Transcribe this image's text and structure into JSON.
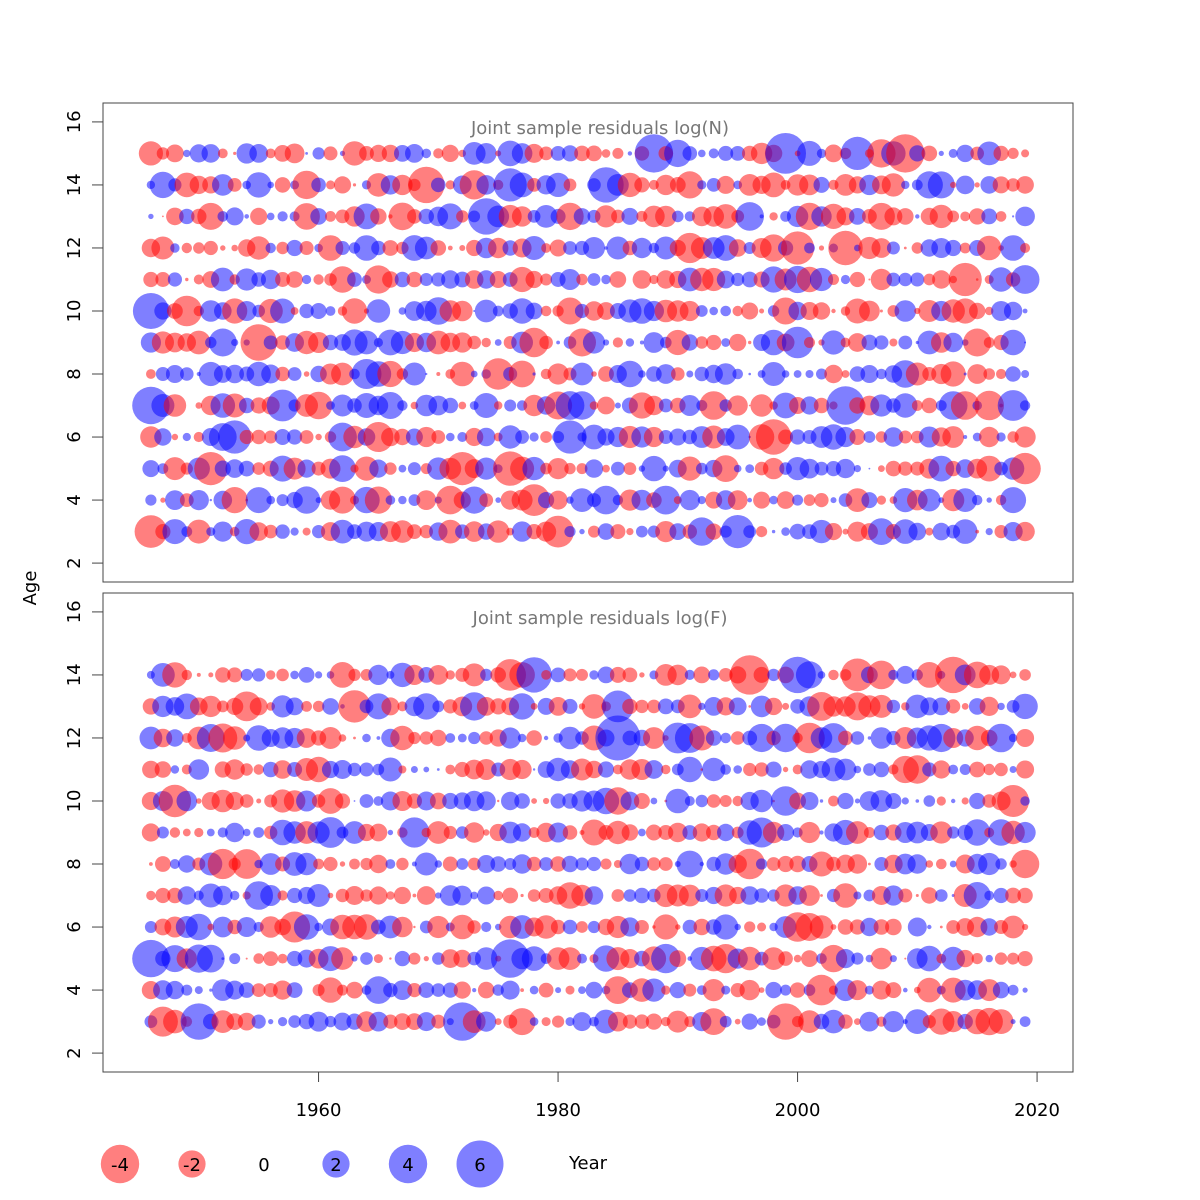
{
  "colors": {
    "positive": "#0000ff",
    "negative": "#ff0000",
    "alpha": 0.5,
    "title": "#777777"
  },
  "chart_data": [
    {
      "type": "bubble",
      "title": "Joint sample residuals log(N)",
      "xlabel": "Year",
      "ylabel": "Age",
      "xlim": [
        1942,
        2023
      ],
      "ylim": [
        1.4,
        16.6
      ],
      "x_ticks": [
        1960,
        1980,
        2000,
        2020
      ],
      "y_ticks": [
        2,
        4,
        6,
        8,
        10,
        12,
        14,
        16
      ],
      "years": [
        1946,
        2019
      ],
      "ages": [
        3,
        15
      ],
      "note": "Residual bubbles for every year 1946-2019 and age 3-15; blue = positive, red = negative; area proportional to |residual|."
    },
    {
      "type": "bubble",
      "title": "Joint sample residuals log(F)",
      "xlabel": "Year",
      "ylabel": "Age",
      "xlim": [
        1942,
        2023
      ],
      "ylim": [
        1.4,
        16.6
      ],
      "x_ticks": [
        1960,
        1980,
        2000,
        2020
      ],
      "y_ticks": [
        2,
        4,
        6,
        8,
        10,
        12,
        14,
        16
      ],
      "years": [
        1946,
        2019
      ],
      "ages": [
        3,
        14
      ],
      "note": "Residual bubbles for every year 1946-2019 and age 3-14; blue = positive, red = negative; area proportional to |residual|."
    }
  ],
  "legend": {
    "entries": [
      {
        "value": -4,
        "label": "-4"
      },
      {
        "value": -2,
        "label": "-2"
      },
      {
        "value": 0,
        "label": "0"
      },
      {
        "value": 2,
        "label": "2"
      },
      {
        "value": 4,
        "label": "4"
      },
      {
        "value": 6,
        "label": "6"
      }
    ],
    "xlabel": "Year"
  },
  "highlights": {
    "N": [
      {
        "year": 1946,
        "age": 10,
        "value": 3.5
      },
      {
        "year": 1946,
        "age": 7,
        "value": 3.8
      },
      {
        "year": 1955,
        "age": 9,
        "value": -3.6
      },
      {
        "year": 1969,
        "age": 14,
        "value": -3.6
      },
      {
        "year": 1974,
        "age": 13,
        "value": 3.6
      },
      {
        "year": 1976,
        "age": 5,
        "value": -3.2
      },
      {
        "year": 1984,
        "age": 14,
        "value": 3.4
      },
      {
        "year": 1988,
        "age": 15,
        "value": 4.0
      },
      {
        "year": 1999,
        "age": 15,
        "value": 4.5
      },
      {
        "year": 1998,
        "age": 6,
        "value": -3.4
      },
      {
        "year": 2004,
        "age": 7,
        "value": 4.0
      },
      {
        "year": 2004,
        "age": 12,
        "value": -3.2
      },
      {
        "year": 2009,
        "age": 15,
        "value": -4.0
      }
    ],
    "F": [
      {
        "year": 1946,
        "age": 5,
        "value": 3.8
      },
      {
        "year": 1950,
        "age": 3,
        "value": 3.6
      },
      {
        "year": 1976,
        "age": 5,
        "value": 4.0
      },
      {
        "year": 1978,
        "age": 14,
        "value": 3.4
      },
      {
        "year": 1985,
        "age": 12,
        "value": 5.5
      },
      {
        "year": 1996,
        "age": 14,
        "value": -4.2
      },
      {
        "year": 2000,
        "age": 14,
        "value": 3.6
      },
      {
        "year": 1999,
        "age": 3,
        "value": -3.6
      },
      {
        "year": 2013,
        "age": 14,
        "value": -3.6
      },
      {
        "year": 1972,
        "age": 3,
        "value": 4.0
      }
    ]
  }
}
